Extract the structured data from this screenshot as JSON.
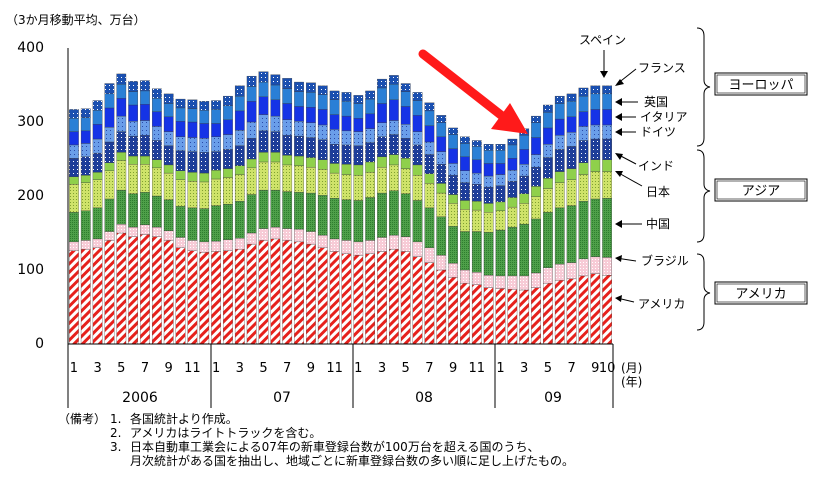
{
  "colors": {
    "spain": "#1a4fb0",
    "france": "#2a7fd6",
    "uk": "#1533e6",
    "italy": "#6a9eea",
    "germany": "#1d3d99",
    "india": "#8fd04b",
    "japan": "#cfe36a",
    "china": "#4fa04a",
    "brazil": "#f7cbd6",
    "usa": "#e6211c",
    "arrow": "#ff1a1a"
  },
  "notes": {
    "label": "（備考）",
    "items": [
      {
        "num": "1.",
        "text": "各国統計より作成。"
      },
      {
        "num": "2.",
        "text": "アメリカはライトトラックを含む。"
      },
      {
        "num": "3.",
        "text": "日本自動車工業会による07年の新車登録台数が100万台を超える国のうち、"
      },
      {
        "num": "",
        "text": "月次統計がある国を抽出し、地域ごとに新車登録台数の多い順に足し上げたもの。"
      }
    ]
  },
  "chart_data": {
    "type": "bar",
    "stacked": true,
    "title": "（3か月移動平均、万台）",
    "ylim": [
      0,
      400
    ],
    "yticks": [
      "0",
      "100",
      "200",
      "300",
      "400"
    ],
    "x_tick_labels": [
      "1",
      "3",
      "5",
      "7",
      "9",
      "11",
      "1",
      "3",
      "5",
      "7",
      "9",
      "11",
      "1",
      "3",
      "5",
      "7",
      "9",
      "11",
      "1",
      "3",
      "5",
      "7",
      "9",
      "10"
    ],
    "year_labels": [
      "2006",
      "07",
      "08",
      "09"
    ],
    "x_unit_labels": [
      "(月)",
      "(年)"
    ],
    "categories": [
      "2006-01",
      "2006-02",
      "2006-03",
      "2006-04",
      "2006-05",
      "2006-06",
      "2006-07",
      "2006-08",
      "2006-09",
      "2006-10",
      "2006-11",
      "2006-12",
      "2007-01",
      "2007-02",
      "2007-03",
      "2007-04",
      "2007-05",
      "2007-06",
      "2007-07",
      "2007-08",
      "2007-09",
      "2007-10",
      "2007-11",
      "2007-12",
      "2008-01",
      "2008-02",
      "2008-03",
      "2008-04",
      "2008-05",
      "2008-06",
      "2008-07",
      "2008-08",
      "2008-09",
      "2008-10",
      "2008-11",
      "2008-12",
      "2009-01",
      "2009-02",
      "2009-03",
      "2009-04",
      "2009-05",
      "2009-06",
      "2009-07",
      "2009-08",
      "2009-09",
      "2009-10"
    ],
    "series": [
      {
        "name": "アメリカ",
        "color_key": "usa",
        "values": [
          126,
          128,
          130,
          140,
          150,
          145,
          148,
          145,
          140,
          130,
          126,
          124,
          125,
          126,
          128,
          135,
          140,
          142,
          140,
          138,
          135,
          130,
          125,
          122,
          120,
          122,
          125,
          128,
          125,
          118,
          110,
          100,
          90,
          82,
          80,
          76,
          75,
          74,
          73,
          76,
          82,
          86,
          88,
          92,
          95,
          93
        ]
      },
      {
        "name": "ブラジル",
        "color_key": "brazil",
        "values": [
          12,
          12,
          12,
          12,
          12,
          13,
          13,
          13,
          13,
          14,
          14,
          14,
          14,
          15,
          15,
          15,
          16,
          16,
          16,
          17,
          17,
          17,
          17,
          18,
          18,
          18,
          19,
          19,
          20,
          20,
          20,
          20,
          19,
          18,
          17,
          17,
          17,
          18,
          19,
          20,
          21,
          22,
          22,
          23,
          23,
          24
        ]
      },
      {
        "name": "中国",
        "color_key": "china",
        "values": [
          40,
          40,
          42,
          44,
          46,
          45,
          44,
          42,
          42,
          42,
          44,
          45,
          48,
          48,
          50,
          52,
          52,
          50,
          50,
          50,
          52,
          54,
          55,
          55,
          56,
          58,
          60,
          60,
          58,
          56,
          54,
          52,
          50,
          52,
          55,
          58,
          62,
          66,
          70,
          73,
          75,
          76,
          77,
          78,
          78,
          80
        ]
      },
      {
        "name": "日本",
        "color_key": "japan",
        "values": [
          38,
          38,
          38,
          38,
          40,
          40,
          38,
          38,
          36,
          36,
          36,
          36,
          36,
          36,
          36,
          36,
          38,
          38,
          36,
          36,
          35,
          35,
          34,
          34,
          34,
          34,
          35,
          35,
          34,
          34,
          33,
          32,
          31,
          30,
          29,
          27,
          26,
          27,
          28,
          30,
          32,
          34,
          35,
          36,
          37,
          36
        ]
      },
      {
        "name": "インド",
        "color_key": "india",
        "values": [
          10,
          10,
          10,
          11,
          11,
          11,
          11,
          11,
          11,
          12,
          12,
          12,
          12,
          12,
          12,
          12,
          13,
          13,
          13,
          13,
          13,
          13,
          13,
          14,
          14,
          14,
          14,
          14,
          14,
          14,
          13,
          13,
          12,
          12,
          12,
          12,
          12,
          13,
          13,
          14,
          14,
          15,
          15,
          16,
          16,
          16
        ]
      },
      {
        "name": "ドイツ",
        "color_key": "germany",
        "values": [
          25,
          25,
          26,
          28,
          28,
          27,
          28,
          26,
          26,
          27,
          28,
          28,
          25,
          26,
          27,
          28,
          29,
          28,
          27,
          27,
          27,
          27,
          26,
          26,
          26,
          26,
          27,
          27,
          27,
          27,
          26,
          26,
          26,
          24,
          23,
          22,
          22,
          22,
          24,
          26,
          28,
          30,
          30,
          30,
          28,
          28
        ]
      },
      {
        "name": "イタリア",
        "color_key": "italy",
        "values": [
          18,
          18,
          19,
          20,
          21,
          20,
          20,
          19,
          19,
          19,
          19,
          19,
          20,
          20,
          21,
          22,
          22,
          21,
          21,
          20,
          20,
          20,
          20,
          19,
          19,
          19,
          19,
          19,
          19,
          18,
          17,
          17,
          16,
          16,
          15,
          15,
          15,
          15,
          16,
          17,
          18,
          19,
          19,
          19,
          19,
          19
        ]
      },
      {
        "name": "英国",
        "color_key": "uk",
        "values": [
          18,
          17,
          20,
          26,
          24,
          22,
          22,
          20,
          20,
          21,
          21,
          20,
          18,
          20,
          26,
          28,
          24,
          22,
          22,
          20,
          21,
          21,
          20,
          20,
          18,
          20,
          26,
          28,
          24,
          22,
          22,
          20,
          20,
          19,
          18,
          17,
          15,
          16,
          20,
          23,
          22,
          22,
          21,
          20,
          21,
          21
        ]
      },
      {
        "name": "フランス",
        "color_key": "france",
        "values": [
          18,
          18,
          19,
          19,
          19,
          18,
          18,
          18,
          18,
          18,
          18,
          18,
          19,
          19,
          20,
          20,
          20,
          20,
          20,
          20,
          20,
          20,
          20,
          20,
          20,
          20,
          21,
          21,
          20,
          20,
          20,
          19,
          19,
          18,
          18,
          18,
          18,
          18,
          19,
          20,
          21,
          21,
          21,
          21,
          21,
          21
        ]
      },
      {
        "name": "スペイン",
        "color_key": "spain",
        "values": [
          12,
          12,
          13,
          14,
          14,
          14,
          14,
          13,
          13,
          12,
          12,
          12,
          12,
          13,
          14,
          14,
          14,
          14,
          14,
          13,
          13,
          12,
          12,
          12,
          11,
          11,
          12,
          12,
          11,
          11,
          11,
          10,
          9,
          9,
          8,
          8,
          8,
          8,
          9,
          9,
          10,
          10,
          10,
          11,
          11,
          11
        ]
      }
    ],
    "series_labels": [
      "スペイン",
      "フランス",
      "英国",
      "イタリア",
      "ドイツ",
      "インド",
      "日本",
      "中国",
      "ブラジル",
      "アメリカ"
    ],
    "region_labels": [
      "ヨーロッパ",
      "アジア",
      "アメリカ"
    ]
  }
}
